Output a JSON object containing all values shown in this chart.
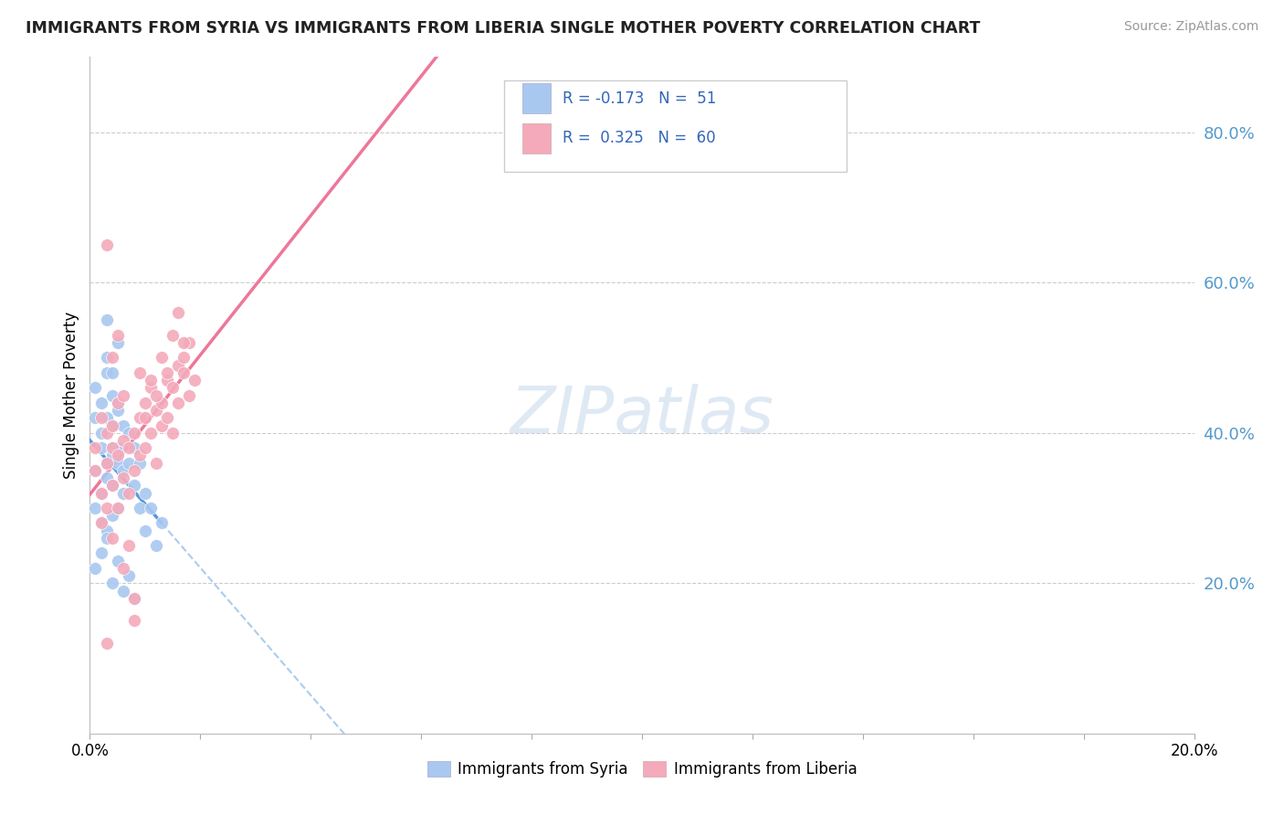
{
  "title": "IMMIGRANTS FROM SYRIA VS IMMIGRANTS FROM LIBERIA SINGLE MOTHER POVERTY CORRELATION CHART",
  "source": "Source: ZipAtlas.com",
  "ylabel": "Single Mother Poverty",
  "color_syria": "#A8C8F0",
  "color_liberia": "#F4AABB",
  "color_syria_line_solid": "#5599DD",
  "color_syria_line_dash": "#AACCEE",
  "color_liberia_line": "#EE7799",
  "watermark": "ZIPatlas",
  "legend_label1": "Immigrants from Syria",
  "legend_label2": "Immigrants from Liberia",
  "xlim": [
    0.0,
    0.2
  ],
  "ylim": [
    0.0,
    0.9
  ],
  "ytick_vals": [
    0.2,
    0.4,
    0.6,
    0.8
  ],
  "syria_x": [
    0.001,
    0.001,
    0.001,
    0.001,
    0.002,
    0.002,
    0.002,
    0.002,
    0.002,
    0.003,
    0.003,
    0.003,
    0.003,
    0.003,
    0.003,
    0.004,
    0.004,
    0.004,
    0.004,
    0.004,
    0.004,
    0.005,
    0.005,
    0.005,
    0.005,
    0.005,
    0.006,
    0.006,
    0.006,
    0.007,
    0.007,
    0.008,
    0.008,
    0.009,
    0.009,
    0.01,
    0.01,
    0.011,
    0.012,
    0.013,
    0.001,
    0.002,
    0.003,
    0.004,
    0.005,
    0.006,
    0.007,
    0.008,
    0.003,
    0.004,
    0.005
  ],
  "syria_y": [
    0.35,
    0.42,
    0.3,
    0.46,
    0.4,
    0.38,
    0.44,
    0.32,
    0.28,
    0.48,
    0.36,
    0.42,
    0.34,
    0.5,
    0.27,
    0.45,
    0.38,
    0.33,
    0.41,
    0.29,
    0.37,
    0.44,
    0.36,
    0.3,
    0.38,
    0.43,
    0.41,
    0.35,
    0.32,
    0.4,
    0.36,
    0.38,
    0.33,
    0.36,
    0.3,
    0.32,
    0.27,
    0.3,
    0.25,
    0.28,
    0.22,
    0.24,
    0.26,
    0.2,
    0.23,
    0.19,
    0.21,
    0.18,
    0.55,
    0.48,
    0.52
  ],
  "liberia_x": [
    0.001,
    0.001,
    0.002,
    0.002,
    0.002,
    0.003,
    0.003,
    0.003,
    0.003,
    0.004,
    0.004,
    0.004,
    0.004,
    0.005,
    0.005,
    0.005,
    0.006,
    0.006,
    0.006,
    0.007,
    0.007,
    0.008,
    0.008,
    0.009,
    0.009,
    0.01,
    0.01,
    0.011,
    0.011,
    0.012,
    0.012,
    0.013,
    0.013,
    0.014,
    0.014,
    0.015,
    0.015,
    0.016,
    0.016,
    0.017,
    0.017,
    0.018,
    0.018,
    0.019,
    0.004,
    0.005,
    0.006,
    0.007,
    0.008,
    0.009,
    0.01,
    0.011,
    0.012,
    0.013,
    0.014,
    0.015,
    0.016,
    0.017,
    0.003,
    0.008
  ],
  "liberia_y": [
    0.35,
    0.38,
    0.32,
    0.42,
    0.28,
    0.36,
    0.4,
    0.3,
    0.65,
    0.38,
    0.33,
    0.41,
    0.26,
    0.37,
    0.44,
    0.3,
    0.39,
    0.34,
    0.45,
    0.38,
    0.32,
    0.4,
    0.35,
    0.42,
    0.37,
    0.44,
    0.38,
    0.46,
    0.4,
    0.43,
    0.36,
    0.44,
    0.41,
    0.47,
    0.42,
    0.46,
    0.4,
    0.49,
    0.44,
    0.48,
    0.5,
    0.45,
    0.52,
    0.47,
    0.5,
    0.53,
    0.22,
    0.25,
    0.18,
    0.48,
    0.42,
    0.47,
    0.45,
    0.5,
    0.48,
    0.53,
    0.56,
    0.52,
    0.12,
    0.15
  ]
}
